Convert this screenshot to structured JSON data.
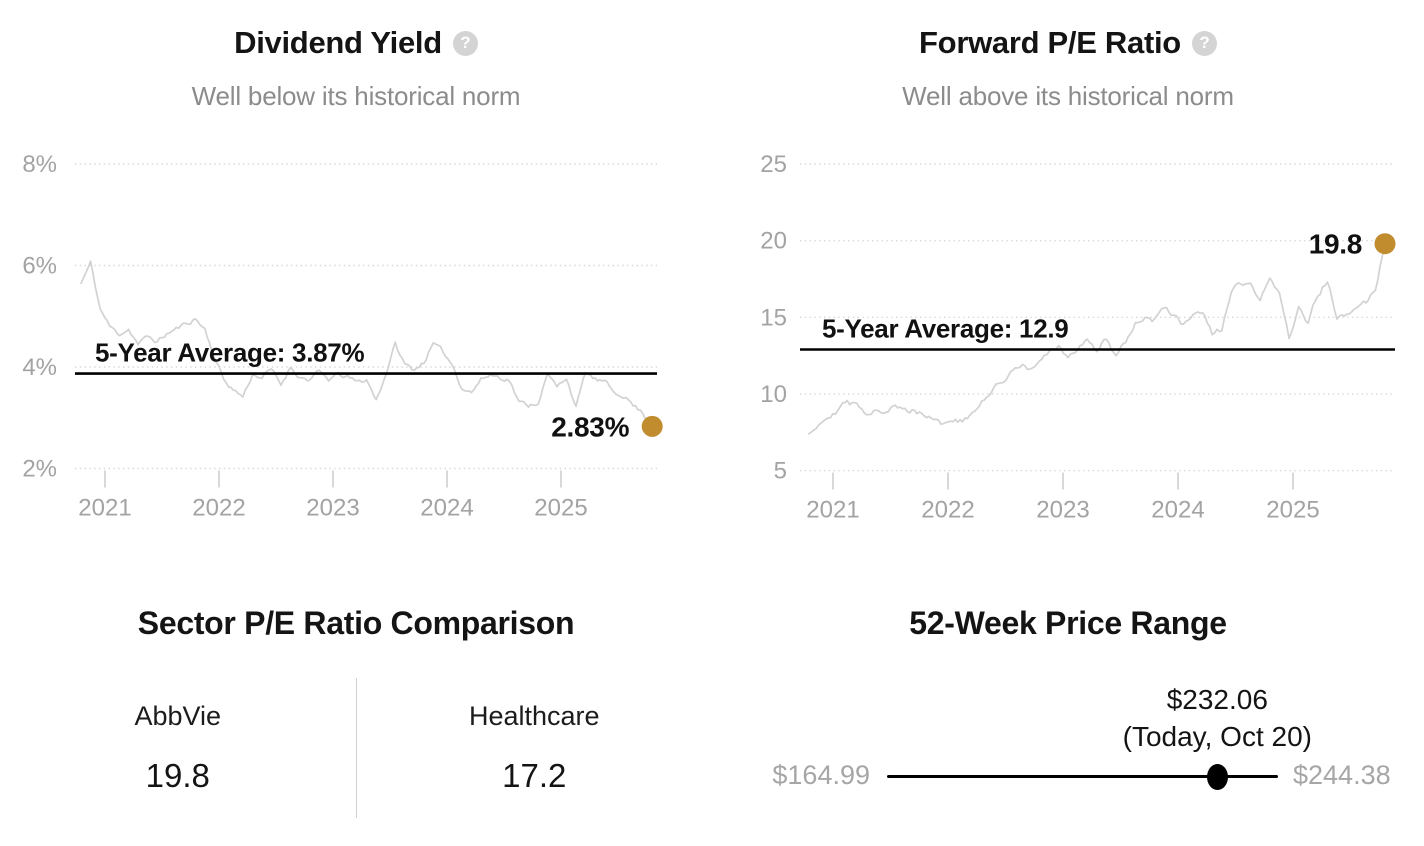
{
  "ui": {
    "help_glyph": "?"
  },
  "colors": {
    "gold": "#c08c2e",
    "series_line": "#d2d2d2",
    "average_line": "#000000",
    "axis_text": "#a3a3a3",
    "title_text": "#141414",
    "subtitle_text": "#8c8c8c",
    "help_icon_bg": "#d4d4d4",
    "divider": "#d0d0d0",
    "muted_price": "#a6a6a6"
  },
  "chart_data": [
    {
      "type": "line",
      "title": "Dividend Yield",
      "subtitle": "Well below its historical norm",
      "x_start": 2020.79,
      "x_end": 2025.8,
      "x_ticks": [
        2021,
        2022,
        2023,
        2024,
        2025
      ],
      "y_ticks": [
        8,
        6,
        4,
        2
      ],
      "y_tick_suffix": "%",
      "ylim": [
        1.6,
        8.7
      ],
      "grid": true,
      "legend_position": "none",
      "average": {
        "label": "5-Year Average: 3.87%",
        "value": 3.87
      },
      "current": {
        "label": "2.83%",
        "value": 2.83
      },
      "render_noise": 0.09,
      "monthly_values": [
        5.65,
        6.05,
        5.15,
        4.8,
        4.65,
        4.75,
        4.45,
        4.6,
        4.5,
        4.65,
        4.75,
        4.85,
        4.95,
        4.75,
        4.2,
        3.75,
        3.55,
        3.42,
        3.85,
        3.8,
        3.95,
        3.65,
        4.0,
        3.8,
        3.75,
        3.9,
        3.75,
        3.85,
        3.8,
        3.7,
        3.75,
        3.35,
        3.85,
        4.45,
        4.05,
        3.95,
        4.1,
        4.45,
        4.3,
        4.05,
        3.6,
        3.5,
        3.75,
        3.85,
        3.8,
        3.75,
        3.3,
        3.25,
        3.3,
        3.85,
        3.6,
        3.8,
        3.2,
        3.9,
        3.75,
        3.7,
        3.5,
        3.45,
        3.25,
        3.1,
        2.83
      ]
    },
    {
      "type": "line",
      "title": "Forward P/E Ratio",
      "subtitle": "Well above its historical norm",
      "x_start": 2020.79,
      "x_end": 2025.8,
      "x_ticks": [
        2021,
        2022,
        2023,
        2024,
        2025
      ],
      "y_ticks": [
        25,
        20,
        15,
        10,
        5
      ],
      "y_tick_suffix": "",
      "ylim": [
        4.5,
        25.5
      ],
      "grid": true,
      "legend_position": "none",
      "average": {
        "label": "5-Year Average: 12.9",
        "value": 12.9
      },
      "current": {
        "label": "19.8",
        "value": 19.8
      },
      "render_noise": 0.4,
      "monthly_values": [
        7.4,
        8.1,
        8.6,
        9.0,
        9.45,
        9.2,
        8.8,
        9.1,
        8.85,
        9.15,
        8.9,
        9.0,
        8.7,
        8.5,
        8.05,
        8.3,
        8.2,
        8.6,
        9.4,
        10.2,
        10.7,
        11.5,
        11.9,
        11.6,
        12.0,
        12.6,
        13.2,
        12.2,
        12.9,
        13.7,
        12.8,
        13.6,
        12.5,
        13.5,
        14.6,
        15.0,
        14.8,
        15.7,
        15.2,
        14.4,
        15.0,
        15.3,
        13.8,
        14.2,
        16.8,
        17.1,
        17.0,
        16.1,
        17.3,
        16.8,
        13.7,
        15.5,
        14.6,
        16.5,
        17.4,
        15.0,
        15.0,
        15.6,
        16.0,
        16.8,
        19.8
      ]
    },
    {
      "type": "table",
      "title": "Sector P/E Ratio Comparison",
      "columns": [
        "AbbVie",
        "Healthcare"
      ],
      "values": [
        19.8,
        17.2
      ],
      "display_values": [
        "19.8",
        "17.2"
      ]
    },
    {
      "type": "range",
      "title": "52-Week Price Range",
      "min": 164.99,
      "max": 244.38,
      "current": 232.06,
      "min_label": "$164.99",
      "max_label": "$244.38",
      "current_label": "$232.06",
      "note": "(Today, Oct 20)"
    }
  ]
}
